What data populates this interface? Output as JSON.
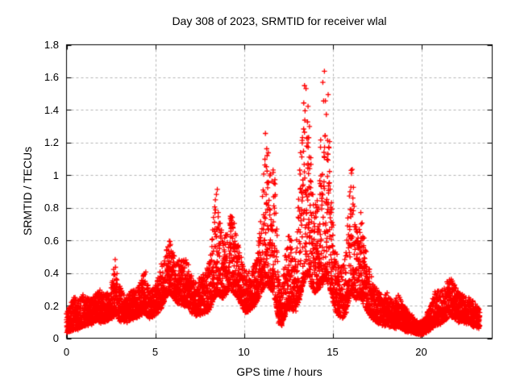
{
  "chart_data": {
    "type": "scatter",
    "title": "Day 308 of 2023, SRMTID for receiver wlal",
    "xlabel": "GPS time / hours",
    "ylabel": "SRMTID / TECUs",
    "xlim": [
      0,
      24
    ],
    "ylim": [
      0,
      1.8
    ],
    "xticks": {
      "values": [
        0,
        5,
        10,
        15,
        20
      ],
      "labels": [
        "0",
        "5",
        "10",
        "15",
        "20"
      ]
    },
    "yticks": {
      "values": [
        0,
        0.2,
        0.4,
        0.6,
        0.8,
        1.0,
        1.2,
        1.4,
        1.6,
        1.8
      ],
      "labels": [
        "0",
        "0.2",
        "0.4",
        "0.6",
        "0.8",
        "1",
        "1.2",
        "1.4",
        "1.6",
        "1.8"
      ]
    },
    "grid": true,
    "legend_position": "none",
    "colors": {
      "marker": "#ff0000",
      "grid": "#b4b4b4",
      "axis": "#000000",
      "background": "#ffffff"
    },
    "series": [
      {
        "name": "SRMTID",
        "marker": "plus",
        "color": "#ff0000",
        "t_start": 0.0,
        "t_end": 23.3,
        "samples_per_hour": 120,
        "points_per_sample": 2,
        "envelope": [
          [
            0.0,
            0.03,
            0.15
          ],
          [
            0.2,
            0.04,
            0.2
          ],
          [
            0.4,
            0.05,
            0.26
          ],
          [
            0.6,
            0.05,
            0.22
          ],
          [
            0.8,
            0.07,
            0.26
          ],
          [
            1.0,
            0.08,
            0.28
          ],
          [
            1.3,
            0.08,
            0.24
          ],
          [
            1.6,
            0.1,
            0.28
          ],
          [
            1.9,
            0.1,
            0.3
          ],
          [
            2.2,
            0.1,
            0.26
          ],
          [
            2.5,
            0.12,
            0.3
          ],
          [
            2.65,
            0.13,
            0.44
          ],
          [
            2.75,
            0.15,
            0.53
          ],
          [
            2.9,
            0.12,
            0.34
          ],
          [
            3.1,
            0.1,
            0.3
          ],
          [
            3.4,
            0.1,
            0.26
          ],
          [
            3.7,
            0.12,
            0.3
          ],
          [
            4.0,
            0.12,
            0.3
          ],
          [
            4.2,
            0.14,
            0.36
          ],
          [
            4.45,
            0.15,
            0.43
          ],
          [
            4.65,
            0.12,
            0.3
          ],
          [
            4.9,
            0.13,
            0.3
          ],
          [
            5.1,
            0.15,
            0.35
          ],
          [
            5.35,
            0.18,
            0.45
          ],
          [
            5.6,
            0.25,
            0.55
          ],
          [
            5.8,
            0.28,
            0.62
          ],
          [
            6.0,
            0.25,
            0.55
          ],
          [
            6.2,
            0.22,
            0.46
          ],
          [
            6.5,
            0.2,
            0.5
          ],
          [
            6.8,
            0.2,
            0.48
          ],
          [
            7.0,
            0.16,
            0.4
          ],
          [
            7.3,
            0.14,
            0.34
          ],
          [
            7.6,
            0.15,
            0.38
          ],
          [
            7.9,
            0.16,
            0.42
          ],
          [
            8.1,
            0.18,
            0.5
          ],
          [
            8.35,
            0.25,
            0.82
          ],
          [
            8.5,
            0.28,
            0.95
          ],
          [
            8.65,
            0.25,
            0.72
          ],
          [
            8.85,
            0.25,
            0.62
          ],
          [
            9.05,
            0.28,
            0.66
          ],
          [
            9.25,
            0.3,
            0.78
          ],
          [
            9.45,
            0.28,
            0.72
          ],
          [
            9.65,
            0.24,
            0.58
          ],
          [
            9.85,
            0.2,
            0.5
          ],
          [
            10.1,
            0.16,
            0.42
          ],
          [
            10.35,
            0.17,
            0.4
          ],
          [
            10.6,
            0.2,
            0.46
          ],
          [
            10.85,
            0.25,
            0.6
          ],
          [
            11.05,
            0.3,
            0.95
          ],
          [
            11.2,
            0.33,
            1.28
          ],
          [
            11.35,
            0.33,
            1.24
          ],
          [
            11.5,
            0.3,
            1.0
          ],
          [
            11.65,
            0.28,
            1.12
          ],
          [
            11.8,
            0.22,
            0.95
          ],
          [
            11.95,
            0.1,
            0.42
          ],
          [
            12.1,
            0.07,
            0.28
          ],
          [
            12.3,
            0.13,
            0.5
          ],
          [
            12.5,
            0.18,
            0.66
          ],
          [
            12.7,
            0.18,
            0.6
          ],
          [
            12.9,
            0.16,
            0.5
          ],
          [
            13.1,
            0.22,
            0.9
          ],
          [
            13.3,
            0.32,
            1.45
          ],
          [
            13.5,
            0.38,
            1.75
          ],
          [
            13.65,
            0.38,
            1.64
          ],
          [
            13.8,
            0.32,
            1.1
          ],
          [
            14.0,
            0.28,
            0.8
          ],
          [
            14.2,
            0.3,
            0.92
          ],
          [
            14.4,
            0.33,
            1.55
          ],
          [
            14.6,
            0.36,
            1.73
          ],
          [
            14.75,
            0.33,
            1.5
          ],
          [
            14.9,
            0.28,
            0.92
          ],
          [
            15.1,
            0.18,
            0.6
          ],
          [
            15.35,
            0.14,
            0.48
          ],
          [
            15.55,
            0.12,
            0.44
          ],
          [
            15.75,
            0.15,
            0.52
          ],
          [
            15.95,
            0.25,
            0.95
          ],
          [
            16.1,
            0.28,
            1.14
          ],
          [
            16.25,
            0.24,
            0.8
          ],
          [
            16.45,
            0.24,
            0.62
          ],
          [
            16.6,
            0.24,
            0.78
          ],
          [
            16.8,
            0.2,
            0.6
          ],
          [
            17.0,
            0.15,
            0.45
          ],
          [
            17.25,
            0.12,
            0.35
          ],
          [
            17.5,
            0.1,
            0.3
          ],
          [
            17.8,
            0.08,
            0.26
          ],
          [
            18.1,
            0.08,
            0.28
          ],
          [
            18.4,
            0.06,
            0.22
          ],
          [
            18.7,
            0.07,
            0.27
          ],
          [
            19.0,
            0.05,
            0.2
          ],
          [
            19.3,
            0.04,
            0.16
          ],
          [
            19.6,
            0.03,
            0.13
          ],
          [
            19.9,
            0.02,
            0.1
          ],
          [
            20.2,
            0.03,
            0.12
          ],
          [
            20.5,
            0.05,
            0.2
          ],
          [
            20.8,
            0.08,
            0.3
          ],
          [
            21.1,
            0.09,
            0.28
          ],
          [
            21.35,
            0.11,
            0.33
          ],
          [
            21.6,
            0.14,
            0.38
          ],
          [
            21.85,
            0.12,
            0.34
          ],
          [
            22.1,
            0.1,
            0.28
          ],
          [
            22.4,
            0.1,
            0.26
          ],
          [
            22.7,
            0.09,
            0.24
          ],
          [
            23.0,
            0.07,
            0.22
          ],
          [
            23.3,
            0.06,
            0.18
          ]
        ]
      }
    ]
  }
}
